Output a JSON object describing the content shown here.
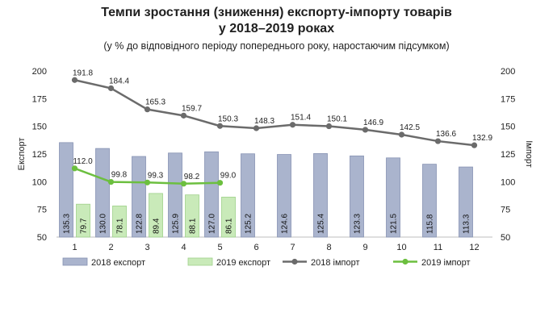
{
  "title_line1": "Темпи зростання (зниження) експорту-імпорту товарів",
  "title_line2": "у 2018–2019 роках",
  "subtitle": "(у % до відповідного періоду попереднього року, наростаючим підсумком)",
  "chart_data": {
    "type": "bar",
    "categories": [
      "1",
      "2",
      "3",
      "4",
      "5",
      "6",
      "7",
      "8",
      "9",
      "10",
      "11",
      "12"
    ],
    "ylabel_left": "Експорт",
    "ylabel_right": "Імпорт",
    "ylim": [
      50,
      200
    ],
    "yticks": [
      50,
      75,
      100,
      125,
      150,
      175,
      200
    ],
    "grid": false,
    "legend_position": "bottom",
    "series": [
      {
        "name": "2018 експорт",
        "type": "bar",
        "axis": "left",
        "color": "#aab4cd",
        "stroke": "#8793b3",
        "values": [
          135.3,
          130.0,
          122.8,
          125.9,
          127.0,
          125.2,
          124.6,
          125.4,
          123.3,
          121.5,
          115.8,
          113.3
        ]
      },
      {
        "name": "2019 експорт",
        "type": "bar",
        "axis": "left",
        "color": "#c9eab9",
        "stroke": "#9fd18a",
        "values": [
          79.7,
          78.1,
          89.4,
          88.1,
          86.1,
          null,
          null,
          null,
          null,
          null,
          null,
          null
        ]
      },
      {
        "name": "2018 імпорт",
        "type": "line",
        "axis": "right",
        "color": "#6b6b6b",
        "values": [
          191.8,
          184.4,
          165.3,
          159.7,
          150.3,
          148.3,
          151.4,
          150.1,
          146.9,
          142.5,
          136.6,
          132.9
        ]
      },
      {
        "name": "2019 імпорт",
        "type": "line",
        "axis": "right",
        "color": "#6cbf3f",
        "values": [
          112.0,
          99.8,
          99.3,
          98.2,
          99.0,
          null,
          null,
          null,
          null,
          null,
          null,
          null
        ]
      }
    ]
  }
}
